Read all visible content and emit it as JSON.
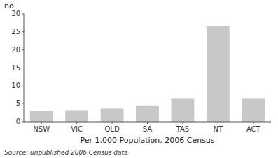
{
  "chart_data": {
    "type": "bar",
    "categories": [
      "NSW",
      "VIC",
      "QLD",
      "SA",
      "TAS",
      "NT",
      "ACT"
    ],
    "values": [
      3.0,
      3.2,
      3.8,
      4.5,
      6.5,
      26.5,
      6.5
    ],
    "color": "#c8c8c8",
    "xlabel": "Per 1,000 Population, 2006 Census",
    "ylabel": "no.",
    "ylim": [
      0,
      30
    ],
    "yticks": [
      0,
      5,
      10,
      15,
      20,
      25,
      30
    ],
    "grid": false,
    "annotations": [
      "Source: unpublished 2006 Census data"
    ]
  }
}
